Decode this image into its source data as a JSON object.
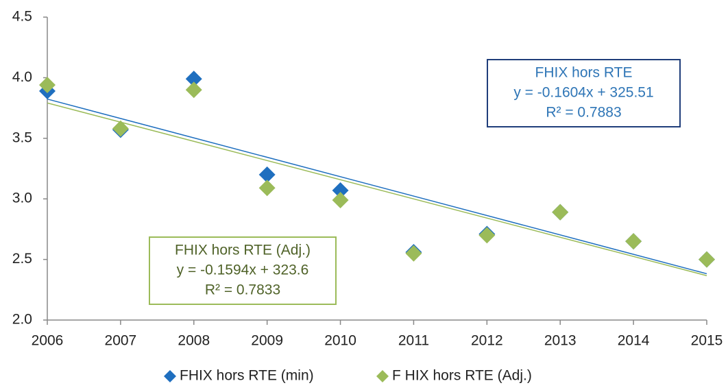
{
  "chart_data": {
    "type": "scatter",
    "x": [
      2006,
      2007,
      2008,
      2009,
      2010,
      2011,
      2012,
      2013,
      2014,
      2015
    ],
    "series": [
      {
        "name": "FHIX hors RTE (min)",
        "color": "#1f6fbf",
        "values": [
          3.89,
          3.57,
          3.99,
          3.2,
          3.07,
          2.56,
          2.71,
          2.89,
          2.65,
          2.5
        ]
      },
      {
        "name": "F HIX hors RTE (Adj.)",
        "color": "#9bbb59",
        "values": [
          3.94,
          3.58,
          3.9,
          3.09,
          2.99,
          2.55,
          2.7,
          2.89,
          2.65,
          2.5
        ]
      }
    ],
    "xlim": [
      2006,
      2015
    ],
    "xticks": [
      2006,
      2007,
      2008,
      2009,
      2010,
      2011,
      2012,
      2013,
      2014,
      2015
    ],
    "ylim": [
      2.0,
      4.5
    ],
    "yticks": [
      {
        "value": 2.0,
        "label": "2.0"
      },
      2.5,
      {
        "value": 3.0,
        "label": "3.0"
      },
      3.5,
      {
        "value": 4.0,
        "label": "4.0"
      },
      4.5
    ],
    "trendline": true,
    "annotations": [
      {
        "lines": [
          "FHIX hors RTE",
          "y = -0.1604x + 325.51",
          "R² = 0.7883"
        ],
        "color": "#2e75b6",
        "border": "#1f3d7a"
      },
      {
        "lines": [
          "FHIX hors RTE (Adj.)",
          "y = -0.1594x + 323.6",
          "R² = 0.7833"
        ],
        "color": "#4f6228",
        "border": "#9bbb59"
      }
    ]
  }
}
